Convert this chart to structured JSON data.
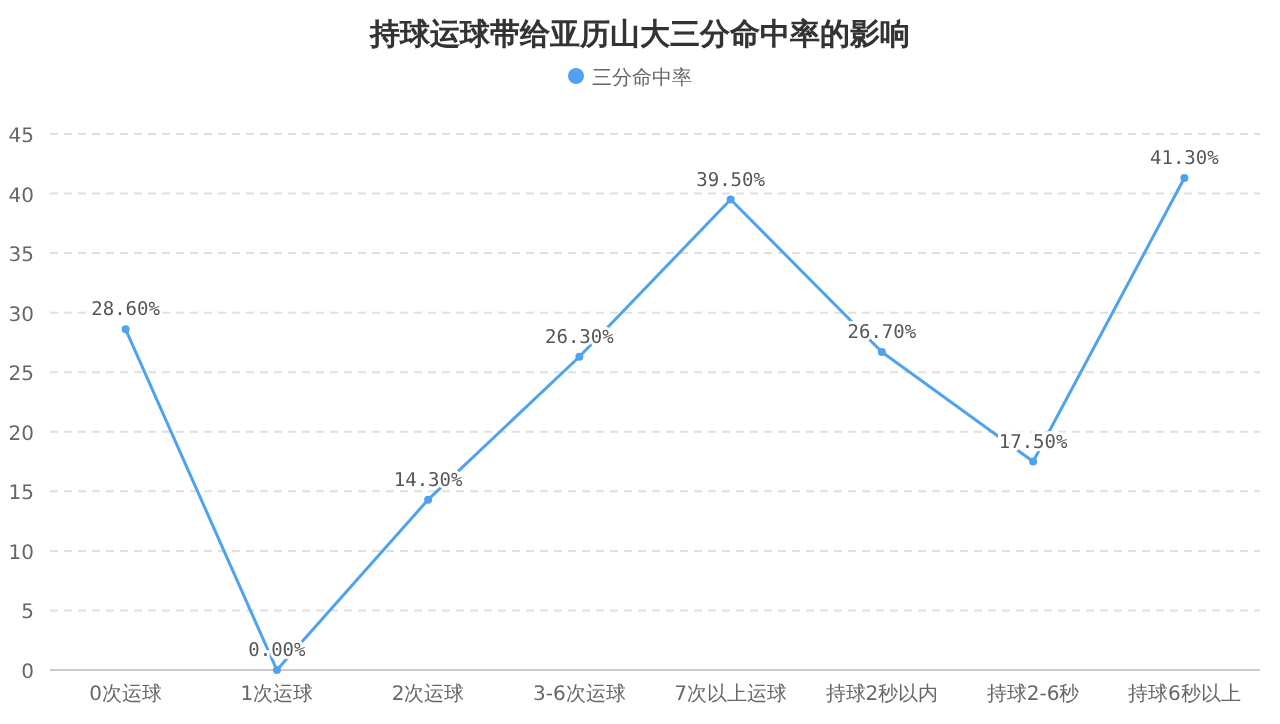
{
  "chart_data": {
    "type": "line",
    "title": "持球运球带给亚历山大三分命中率的影响",
    "categories": [
      "0次运球",
      "1次运球",
      "2次运球",
      "3-6次运球",
      "7次以上运球",
      "持球2秒以内",
      "持球2-6秒",
      "持球6秒以上"
    ],
    "series": [
      {
        "name": "三分命中率",
        "color": "#4fa3ee",
        "values": [
          28.6,
          0,
          14.3,
          26.3,
          39.5,
          26.7,
          17.5,
          41.3
        ],
        "value_labels": [
          "28.60%",
          "0.00%",
          "14.30%",
          "26.30%",
          "39.50%",
          "26.70%",
          "17.50%",
          "41.30%"
        ]
      }
    ],
    "ylim": [
      0,
      45
    ],
    "yticks": [
      0,
      5,
      10,
      15,
      20,
      25,
      30,
      35,
      40,
      45
    ],
    "grid": "y",
    "legend": "top",
    "marker": "circle",
    "line_style": "solid"
  }
}
